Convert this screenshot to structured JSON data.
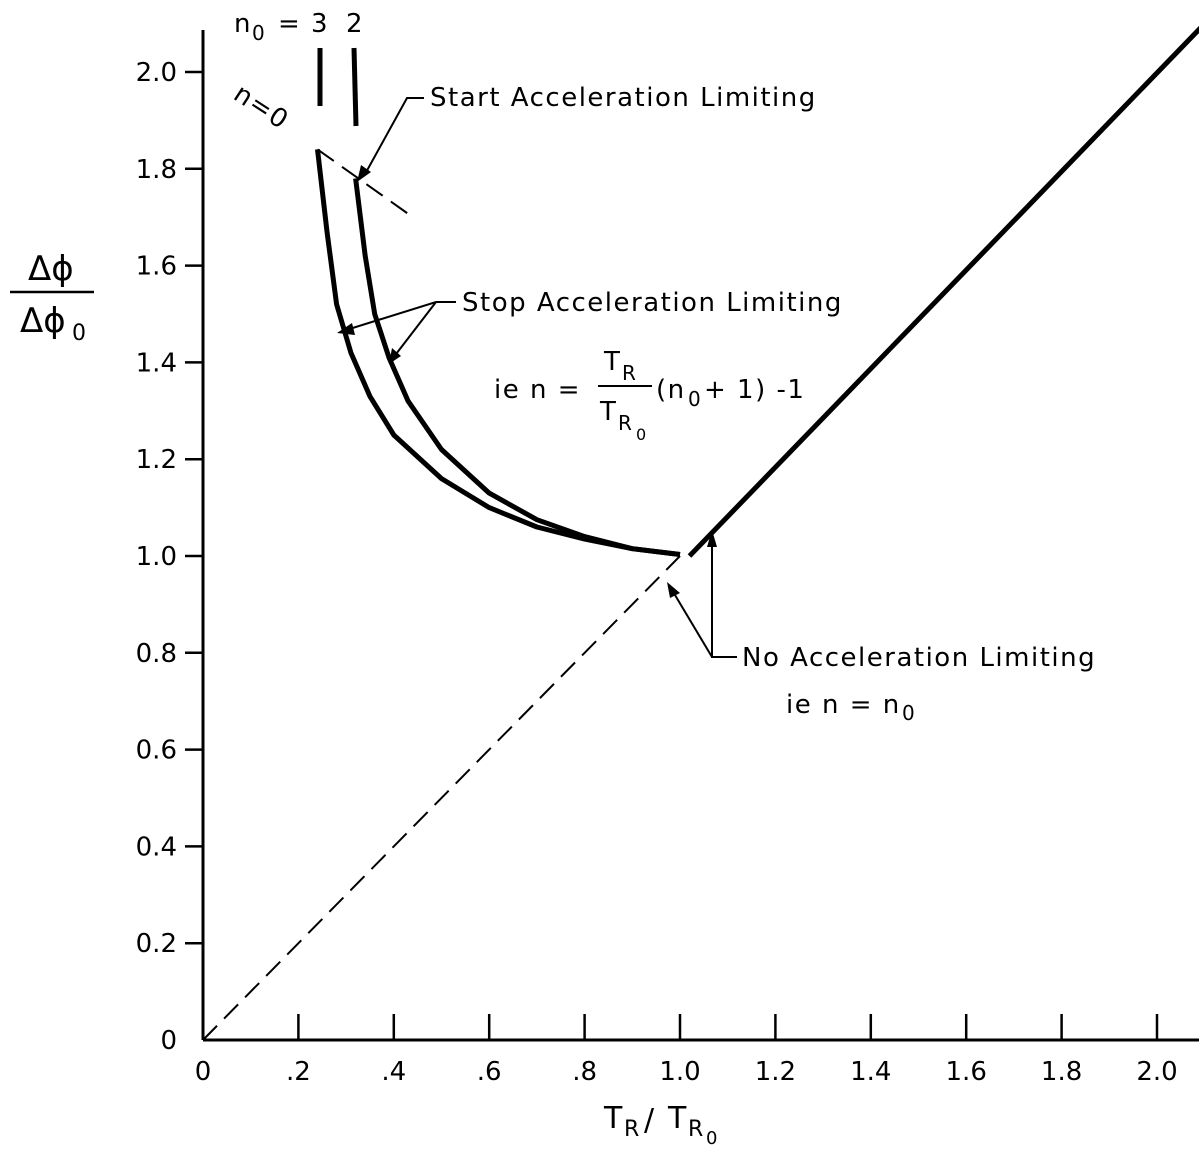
{
  "chart_data": {
    "type": "line",
    "xlabel": {
      "base": "T",
      "sub": "R",
      "sep": "/",
      "base2": "T",
      "sub2": "R",
      "subsub2": "0"
    },
    "ylabel": {
      "num_base": "Δϕ",
      "den_base": "Δϕ",
      "den_sub": "0"
    },
    "xlim": [
      0,
      2.1
    ],
    "ylim": [
      0,
      2.1
    ],
    "x_ticks": [
      {
        "value": 0,
        "label": "0"
      },
      {
        "value": 0.2,
        "label": ".2"
      },
      {
        "value": 0.4,
        "label": ".4"
      },
      {
        "value": 0.6,
        "label": ".6"
      },
      {
        "value": 0.8,
        "label": ".8"
      },
      {
        "value": 1.0,
        "label": "1.0"
      },
      {
        "value": 1.2,
        "label": "1.2"
      },
      {
        "value": 1.4,
        "label": "1.4"
      },
      {
        "value": 1.6,
        "label": "1.6"
      },
      {
        "value": 1.8,
        "label": "1.8"
      },
      {
        "value": 2.0,
        "label": "2.0"
      }
    ],
    "y_ticks": [
      {
        "value": 0,
        "label": "0"
      },
      {
        "value": 0.2,
        "label": "0.2"
      },
      {
        "value": 0.4,
        "label": "0.4"
      },
      {
        "value": 0.6,
        "label": "0.6"
      },
      {
        "value": 0.8,
        "label": "0.8"
      },
      {
        "value": 1.0,
        "label": "1.0"
      },
      {
        "value": 1.2,
        "label": "1.2"
      },
      {
        "value": 1.4,
        "label": "1.4"
      },
      {
        "value": 1.6,
        "label": "1.6"
      },
      {
        "value": 1.8,
        "label": "1.8"
      },
      {
        "value": 2.0,
        "label": "2.0"
      }
    ],
    "grid": false,
    "series": [
      {
        "label": "n0=3",
        "style": "solid",
        "points": [
          [
            0.24,
            1.84
          ],
          [
            0.26,
            1.67
          ],
          [
            0.28,
            1.52
          ],
          [
            0.31,
            1.42
          ],
          [
            0.35,
            1.33
          ],
          [
            0.4,
            1.25
          ],
          [
            0.5,
            1.16
          ],
          [
            0.6,
            1.1
          ],
          [
            0.7,
            1.06
          ],
          [
            0.8,
            1.035
          ],
          [
            0.9,
            1.015
          ],
          [
            1.0,
            1.003
          ]
        ]
      },
      {
        "label": "n0=2",
        "style": "solid",
        "points": [
          [
            0.32,
            1.78
          ],
          [
            0.34,
            1.62
          ],
          [
            0.36,
            1.5
          ],
          [
            0.39,
            1.41
          ],
          [
            0.43,
            1.32
          ],
          [
            0.5,
            1.22
          ],
          [
            0.6,
            1.13
          ],
          [
            0.7,
            1.075
          ],
          [
            0.8,
            1.04
          ],
          [
            0.9,
            1.015
          ],
          [
            1.0,
            1.003
          ]
        ]
      },
      {
        "label": "No Acceleration Limiting",
        "style": "solid",
        "points": [
          [
            1.02,
            1.0
          ],
          [
            2.1,
            2.1
          ]
        ]
      },
      {
        "label": "diagonal",
        "style": "dashed",
        "points": [
          [
            0,
            0
          ],
          [
            1.0,
            1.0
          ]
        ]
      },
      {
        "label": "n=0",
        "style": "dashed",
        "points": [
          [
            0.24,
            1.84
          ],
          [
            0.44,
            1.7
          ]
        ]
      }
    ],
    "annotations": {
      "n0_label_base": "n",
      "n0_label_sub": "0",
      "n0_label_values": "= 3",
      "n0_label_value2": "2",
      "n_zero": "n=0",
      "start_limit": "Start Acceleration Limiting",
      "stop_limit": "Stop Acceleration Limiting",
      "eq_prefix": "ie n =",
      "eq_num_base": "T",
      "eq_num_sub": "R",
      "eq_den_base": "T",
      "eq_den_sub": "R",
      "eq_den_subsub": "0",
      "eq_suffix_a": "(n",
      "eq_suffix_sub": "0",
      "eq_suffix_b": "+ 1) -1",
      "no_limit": "No Acceleration Limiting",
      "no_limit_eq_base": "ie  n = n",
      "no_limit_eq_sub": "0"
    }
  }
}
